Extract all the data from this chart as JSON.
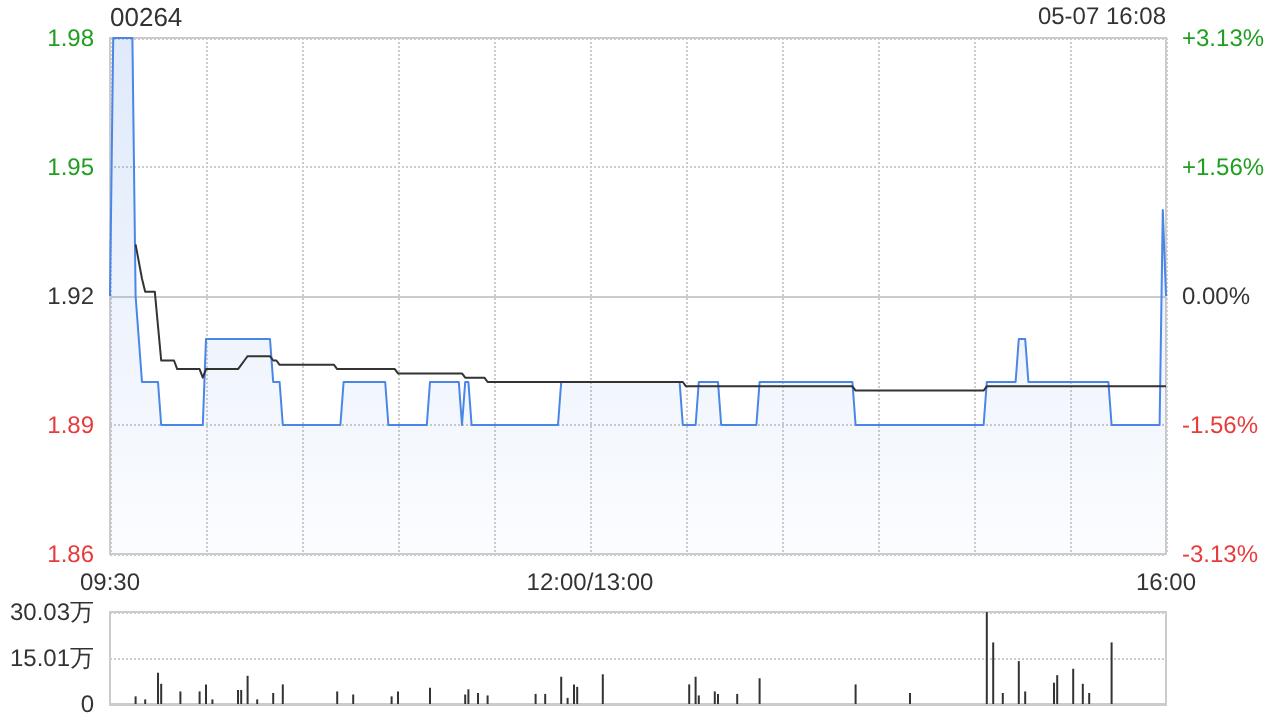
{
  "chart_data": [
    {
      "type": "area",
      "title": "00264",
      "annotations": [
        "05-07 16:08"
      ],
      "categories": [
        "09:30",
        null,
        null,
        null,
        null,
        null,
        null,
        null,
        null,
        null,
        null,
        null,
        null,
        null,
        null,
        null,
        null,
        null,
        null,
        null,
        null,
        null,
        null,
        null,
        null,
        null,
        null,
        null,
        null,
        null,
        null,
        null,
        null,
        null,
        null,
        null,
        null,
        null,
        null,
        null,
        null,
        null,
        null,
        null,
        null,
        null,
        null,
        null,
        null,
        null,
        null,
        null,
        null,
        null,
        null,
        null,
        null,
        null,
        null,
        null,
        null,
        null,
        null,
        null,
        null,
        null,
        null,
        null,
        null,
        null,
        null,
        null,
        null,
        null,
        null,
        null,
        null,
        null,
        null,
        null,
        null,
        null,
        null,
        null,
        null,
        null,
        null,
        null,
        null,
        null,
        null,
        null,
        null,
        null,
        null,
        null,
        null,
        null,
        null,
        null,
        null,
        null,
        null,
        null,
        null,
        null,
        null,
        null,
        null,
        null,
        null,
        null,
        null,
        null,
        null,
        null,
        null,
        null,
        null,
        null,
        null,
        null,
        null,
        null,
        null,
        null,
        null,
        null,
        null,
        null,
        null,
        null,
        null,
        null,
        null,
        null,
        null,
        null,
        null,
        null,
        null,
        null,
        null,
        null,
        null,
        null,
        null,
        null,
        null,
        null,
        "12:00/13:00",
        null,
        null,
        null,
        null,
        null,
        null,
        null,
        null,
        null,
        null,
        null,
        null,
        null,
        null,
        null,
        null,
        null,
        null,
        null,
        null,
        null,
        null,
        null,
        null,
        null,
        null,
        null,
        null,
        null,
        null,
        null,
        null,
        null,
        null,
        null,
        null,
        null,
        null,
        null,
        null,
        null,
        null,
        null,
        null,
        null,
        null,
        null,
        null,
        null,
        null,
        null,
        null,
        null,
        null,
        null,
        null,
        null,
        null,
        null,
        null,
        null,
        null,
        null,
        null,
        null,
        null,
        null,
        null,
        null,
        null,
        null,
        null,
        null,
        null,
        null,
        null,
        null,
        null,
        null,
        null,
        null,
        null,
        null,
        null,
        null,
        null,
        null,
        null,
        null,
        null,
        null,
        null,
        null,
        null,
        null,
        null,
        null,
        null,
        null,
        null,
        null,
        null,
        null,
        null,
        null,
        null,
        null,
        null,
        null,
        null,
        null,
        null,
        null,
        null,
        null,
        null,
        null,
        null,
        null,
        null,
        null,
        null,
        null,
        null,
        null,
        null,
        null,
        null,
        null,
        null,
        null,
        null,
        null,
        null,
        null,
        null,
        null,
        null,
        null,
        null,
        null,
        null,
        null,
        null,
        null,
        null,
        null,
        null,
        null,
        null,
        null,
        null,
        null,
        null,
        null,
        null,
        null,
        null,
        null,
        null,
        null,
        null,
        null,
        null,
        null,
        null,
        null,
        null,
        null,
        null,
        null,
        null,
        null,
        null,
        null,
        null,
        null,
        null,
        null,
        "16:00"
      ],
      "ylim": [
        1.86,
        1.98
      ],
      "yticks": [
        1.86,
        1.89,
        1.92,
        1.95,
        1.98
      ],
      "y2lim": [
        -3.125,
        3.125
      ],
      "y2ticks": [
        {
          "value": -3.125,
          "label": "-3.13%"
        },
        {
          "value": -1.5625,
          "label": "-1.56%"
        },
        {
          "value": 0,
          "label": "0.00%"
        },
        {
          "value": 1.5625,
          "label": "+1.56%"
        },
        {
          "value": 3.125,
          "label": "+3.13%"
        }
      ],
      "grid": true,
      "series": [
        {
          "color": "#4a86e8",
          "values": [
            1.92,
            1.98,
            1.98,
            1.98,
            1.98,
            1.98,
            1.98,
            1.98,
            1.92,
            1.91,
            1.9,
            1.9,
            1.9,
            1.9,
            1.9,
            1.9,
            1.89,
            1.89,
            1.89,
            1.89,
            1.89,
            1.89,
            1.89,
            1.89,
            1.89,
            1.89,
            1.89,
            1.89,
            1.89,
            1.89,
            1.91,
            1.91,
            1.91,
            1.91,
            1.91,
            1.91,
            1.91,
            1.91,
            1.91,
            1.91,
            1.91,
            1.91,
            1.91,
            1.91,
            1.91,
            1.91,
            1.91,
            1.91,
            1.91,
            1.91,
            1.91,
            1.9,
            1.9,
            1.9,
            1.89,
            1.89,
            1.89,
            1.89,
            1.89,
            1.89,
            1.89,
            1.89,
            1.89,
            1.89,
            1.89,
            1.89,
            1.89,
            1.89,
            1.89,
            1.89,
            1.89,
            1.89,
            1.89,
            1.9,
            1.9,
            1.9,
            1.9,
            1.9,
            1.9,
            1.9,
            1.9,
            1.9,
            1.9,
            1.9,
            1.9,
            1.9,
            1.9,
            1.89,
            1.89,
            1.89,
            1.89,
            1.89,
            1.89,
            1.89,
            1.89,
            1.89,
            1.89,
            1.89,
            1.89,
            1.89,
            1.9,
            1.9,
            1.9,
            1.9,
            1.9,
            1.9,
            1.9,
            1.9,
            1.9,
            1.9,
            1.89,
            1.9,
            1.9,
            1.89,
            1.89,
            1.89,
            1.89,
            1.89,
            1.89,
            1.89,
            1.89,
            1.89,
            1.89,
            1.89,
            1.89,
            1.89,
            1.89,
            1.89,
            1.89,
            1.89,
            1.89,
            1.89,
            1.89,
            1.89,
            1.89,
            1.89,
            1.89,
            1.89,
            1.89,
            1.89,
            1.89,
            1.9,
            1.9,
            1.9,
            1.9,
            1.9,
            1.9,
            1.9,
            1.9,
            1.9,
            1.9,
            1.9,
            1.9,
            1.9,
            1.9,
            1.9,
            1.9,
            1.9,
            1.9,
            1.9,
            1.9,
            1.9,
            1.9,
            1.9,
            1.9,
            1.9,
            1.9,
            1.9,
            1.9,
            1.9,
            1.9,
            1.9,
            1.9,
            1.9,
            1.9,
            1.9,
            1.9,
            1.9,
            1.9,
            1.89,
            1.89,
            1.89,
            1.89,
            1.89,
            1.9,
            1.9,
            1.9,
            1.9,
            1.9,
            1.9,
            1.9,
            1.89,
            1.89,
            1.89,
            1.89,
            1.89,
            1.89,
            1.89,
            1.89,
            1.89,
            1.89,
            1.89,
            1.89,
            1.9,
            1.9,
            1.9,
            1.9,
            1.9,
            1.9,
            1.9,
            1.9,
            1.9,
            1.9,
            1.9,
            1.9,
            1.9,
            1.9,
            1.9,
            1.9,
            1.9,
            1.9,
            1.9,
            1.9,
            1.9,
            1.9,
            1.9,
            1.9,
            1.9,
            1.9,
            1.9,
            1.9,
            1.9,
            1.9,
            1.89,
            1.89,
            1.89,
            1.89,
            1.89,
            1.89,
            1.89,
            1.89,
            1.89,
            1.89,
            1.89,
            1.89,
            1.89,
            1.89,
            1.89,
            1.89,
            1.89,
            1.89,
            1.89,
            1.89,
            1.89,
            1.89,
            1.89,
            1.89,
            1.89,
            1.89,
            1.89,
            1.89,
            1.89,
            1.89,
            1.89,
            1.89,
            1.89,
            1.89,
            1.89,
            1.89,
            1.89,
            1.89,
            1.89,
            1.89,
            1.89,
            1.9,
            1.9,
            1.9,
            1.9,
            1.9,
            1.9,
            1.9,
            1.9,
            1.9,
            1.9,
            1.91,
            1.91,
            1.91,
            1.9,
            1.9,
            1.9,
            1.9,
            1.9,
            1.9,
            1.9,
            1.9,
            1.9,
            1.9,
            1.9,
            1.9,
            1.9,
            1.9,
            1.9,
            1.9,
            1.9,
            1.9,
            1.9,
            1.9,
            1.9,
            1.9,
            1.9,
            1.9,
            1.9,
            1.9,
            1.89,
            1.89,
            1.89,
            1.89,
            1.89,
            1.89,
            1.89,
            1.89,
            1.89,
            1.89,
            1.89,
            1.89,
            1.89,
            1.89,
            1.89,
            1.89,
            1.94,
            1.92
          ]
        },
        {
          "type": "line",
          "color": "#333333",
          "values": [
            null,
            null,
            null,
            null,
            null,
            null,
            null,
            null,
            1.932,
            1.928,
            1.924,
            1.921,
            1.921,
            1.921,
            1.921,
            1.913,
            1.905,
            1.905,
            1.905,
            1.905,
            1.905,
            1.903,
            1.903,
            1.903,
            1.903,
            1.903,
            1.903,
            1.903,
            1.903,
            1.901,
            1.903,
            1.903,
            1.903,
            1.903,
            1.903,
            1.903,
            1.903,
            1.903,
            1.903,
            1.903,
            1.903,
            1.904,
            1.905,
            1.906,
            1.906,
            1.906,
            1.906,
            1.906,
            1.906,
            1.906,
            1.906,
            1.905,
            1.905,
            1.904,
            1.904,
            1.904,
            1.904,
            1.904,
            1.904,
            1.904,
            1.904,
            1.904,
            1.904,
            1.904,
            1.904,
            1.904,
            1.904,
            1.904,
            1.904,
            1.904,
            1.904,
            1.903,
            1.903,
            1.903,
            1.903,
            1.903,
            1.903,
            1.903,
            1.903,
            1.903,
            1.903,
            1.903,
            1.903,
            1.903,
            1.903,
            1.903,
            1.903,
            1.903,
            1.903,
            1.903,
            1.902,
            1.902,
            1.902,
            1.902,
            1.902,
            1.902,
            1.902,
            1.902,
            1.902,
            1.902,
            1.902,
            1.902,
            1.902,
            1.902,
            1.902,
            1.902,
            1.902,
            1.902,
            1.902,
            1.902,
            1.902,
            1.901,
            1.901,
            1.901,
            1.901,
            1.901,
            1.901,
            1.901,
            1.9,
            1.9,
            1.9,
            1.9,
            1.9,
            1.9,
            1.9,
            1.9,
            1.9,
            1.9,
            1.9,
            1.9,
            1.9,
            1.9,
            1.9,
            1.9,
            1.9,
            1.9,
            1.9,
            1.9,
            1.9,
            1.9,
            1.9,
            1.9,
            1.9,
            1.9,
            1.9,
            1.9,
            1.9,
            1.9,
            1.9,
            1.9,
            1.9,
            1.9,
            1.9,
            1.9,
            1.9,
            1.9,
            1.9,
            1.9,
            1.9,
            1.9,
            1.9,
            1.9,
            1.9,
            1.9,
            1.9,
            1.9,
            1.9,
            1.9,
            1.9,
            1.9,
            1.9,
            1.9,
            1.9,
            1.9,
            1.9,
            1.9,
            1.9,
            1.9,
            1.9,
            1.9,
            1.899,
            1.899,
            1.899,
            1.899,
            1.899,
            1.899,
            1.899,
            1.899,
            1.899,
            1.899,
            1.899,
            1.899,
            1.899,
            1.899,
            1.899,
            1.899,
            1.899,
            1.899,
            1.899,
            1.899,
            1.899,
            1.899,
            1.899,
            1.899,
            1.899,
            1.899,
            1.899,
            1.899,
            1.899,
            1.899,
            1.899,
            1.899,
            1.899,
            1.899,
            1.899,
            1.899,
            1.899,
            1.899,
            1.899,
            1.899,
            1.899,
            1.899,
            1.899,
            1.899,
            1.899,
            1.899,
            1.899,
            1.899,
            1.899,
            1.899,
            1.899,
            1.899,
            1.899,
            1.898,
            1.898,
            1.898,
            1.898,
            1.898,
            1.898,
            1.898,
            1.898,
            1.898,
            1.898,
            1.898,
            1.898,
            1.898,
            1.898,
            1.898,
            1.898,
            1.898,
            1.898,
            1.898,
            1.898,
            1.898,
            1.898,
            1.898,
            1.898,
            1.898,
            1.898,
            1.898,
            1.898,
            1.898,
            1.898,
            1.898,
            1.898,
            1.898,
            1.898,
            1.898,
            1.898,
            1.898,
            1.898,
            1.898,
            1.898,
            1.898,
            1.899,
            1.899,
            1.899,
            1.899,
            1.899,
            1.899,
            1.899,
            1.899,
            1.899,
            1.899,
            1.899,
            1.899,
            1.899,
            1.899,
            1.899,
            1.899,
            1.899,
            1.899,
            1.899,
            1.899,
            1.899,
            1.899,
            1.899,
            1.899,
            1.899,
            1.899,
            1.899,
            1.899,
            1.899,
            1.899,
            1.899,
            1.899,
            1.899,
            1.899,
            1.899,
            1.899,
            1.899,
            1.899,
            1.899,
            1.899,
            1.899,
            1.899,
            1.899,
            1.899,
            1.899,
            1.899,
            1.899,
            1.899,
            1.899,
            1.899,
            1.899,
            1.899,
            1.899,
            1.899,
            1.899,
            1.899,
            1.899
          ]
        }
      ]
    },
    {
      "type": "bar",
      "categories": [
        null,
        null,
        null,
        null,
        null,
        null,
        null,
        null,
        null,
        null,
        null,
        null,
        null,
        null,
        null,
        null,
        null,
        null,
        null,
        null,
        null,
        null,
        null,
        null,
        null,
        null,
        null,
        null,
        null,
        null,
        null,
        null,
        null,
        null,
        null,
        null,
        null,
        null,
        null,
        null,
        null,
        null,
        null,
        null,
        null,
        null,
        null,
        null,
        null,
        null,
        null,
        null,
        null,
        null,
        null,
        null,
        null,
        null,
        null,
        null,
        null,
        null,
        null,
        null,
        null,
        null,
        null,
        null,
        null,
        null,
        null,
        null,
        null,
        null,
        null,
        null,
        null,
        null,
        null,
        null,
        null,
        null,
        null,
        null,
        null,
        null,
        null,
        null,
        null,
        null,
        null,
        null,
        null,
        null,
        null,
        null,
        null,
        null,
        null,
        null,
        null,
        null,
        null,
        null,
        null,
        null,
        null,
        null,
        null,
        null,
        null,
        null,
        null,
        null,
        null,
        null,
        null,
        null,
        null,
        null,
        null,
        null,
        null,
        null,
        null,
        null,
        null,
        null,
        null,
        null,
        null,
        null,
        null,
        null,
        null,
        null,
        null,
        null,
        null,
        null,
        null,
        null,
        null,
        null,
        null,
        null,
        null,
        null,
        null,
        null,
        null,
        null,
        null,
        null,
        null,
        null,
        null,
        null,
        null,
        null,
        null,
        null,
        null,
        null,
        null,
        null,
        null,
        null,
        null,
        null,
        null,
        null,
        null,
        null,
        null,
        null,
        null,
        null,
        null,
        null,
        null,
        null,
        null,
        null,
        null,
        null,
        null,
        null,
        null,
        null,
        null,
        null,
        null,
        null,
        null,
        null,
        null,
        null,
        null,
        null,
        null,
        null,
        null,
        null,
        null,
        null,
        null,
        null,
        null,
        null,
        null,
        null,
        null,
        null,
        null,
        null,
        null,
        null,
        null,
        null,
        null,
        null,
        null,
        null,
        null,
        null,
        null,
        null,
        null,
        null,
        null,
        null,
        null,
        null,
        null,
        null,
        null,
        null,
        null,
        null,
        null,
        null,
        null,
        null,
        null,
        null,
        null,
        null,
        null,
        null,
        null,
        null,
        null,
        null,
        null,
        null,
        null,
        null,
        null,
        null,
        null,
        null,
        null,
        null,
        null,
        null,
        null,
        null,
        null,
        null,
        null,
        null,
        null,
        null,
        null,
        null,
        null,
        null,
        null,
        null,
        null,
        null,
        null,
        null,
        null,
        null,
        null,
        null,
        null,
        null,
        null,
        null,
        null,
        null,
        null,
        null,
        null,
        null,
        null,
        null,
        null,
        null,
        null,
        null,
        null,
        null,
        null,
        null,
        null,
        null,
        null,
        null,
        null,
        null,
        null,
        null,
        null,
        null,
        null,
        null,
        null,
        null,
        null,
        null,
        null,
        null,
        null,
        null,
        null,
        null,
        null
      ],
      "ylim": [
        0,
        30.03
      ],
      "yticks": [
        0,
        {
          "value": 15.01,
          "label": "15.01万"
        },
        {
          "value": 30.03,
          "label": "30.03万"
        }
      ],
      "grid": "y",
      "series": [
        {
          "color": "#333333",
          "values": [
            null,
            null,
            null,
            null,
            null,
            null,
            null,
            null,
            2.5,
            null,
            null,
            1.5,
            null,
            null,
            null,
            10.2,
            6.6,
            null,
            null,
            null,
            null,
            null,
            4.1,
            null,
            null,
            null,
            null,
            null,
            4.1,
            null,
            6.4,
            null,
            1.5,
            null,
            null,
            null,
            null,
            null,
            null,
            null,
            4.6,
            4.6,
            null,
            9.2,
            null,
            null,
            1.5,
            null,
            null,
            null,
            null,
            3.6,
            null,
            null,
            6.4,
            null,
            null,
            null,
            null,
            null,
            null,
            null,
            null,
            null,
            null,
            null,
            null,
            null,
            null,
            null,
            null,
            4.1,
            null,
            null,
            null,
            null,
            3.1,
            null,
            null,
            null,
            null,
            null,
            null,
            null,
            null,
            null,
            null,
            null,
            2.5,
            null,
            4.1,
            null,
            null,
            null,
            null,
            null,
            null,
            null,
            null,
            null,
            5.3,
            null,
            null,
            null,
            null,
            null,
            null,
            null,
            null,
            null,
            null,
            3.1,
            4.8,
            null,
            null,
            3.6,
            null,
            null,
            2.8,
            null,
            null,
            null,
            null,
            null,
            null,
            null,
            null,
            null,
            null,
            null,
            null,
            null,
            null,
            3.3,
            null,
            null,
            3.3,
            null,
            null,
            null,
            null,
            8.9,
            null,
            2.0,
            null,
            6.4,
            5.6,
            null,
            null,
            null,
            null,
            null,
            null,
            null,
            9.7,
            null,
            null,
            null,
            null,
            null,
            null,
            null,
            null,
            null,
            null,
            null,
            null,
            null,
            null,
            null,
            null,
            null,
            null,
            null,
            null,
            null,
            null,
            null,
            null,
            null,
            null,
            6.4,
            null,
            8.9,
            2.8,
            null,
            null,
            null,
            null,
            4.1,
            3.3,
            null,
            null,
            null,
            null,
            null,
            3.3,
            null,
            null,
            null,
            null,
            null,
            null,
            8.4,
            null,
            null,
            null,
            null,
            null,
            null,
            null,
            null,
            null,
            null,
            null,
            null,
            null,
            null,
            null,
            null,
            null,
            null,
            null,
            null,
            null,
            null,
            null,
            null,
            null,
            null,
            null,
            null,
            null,
            6.4,
            null,
            null,
            null,
            null,
            null,
            null,
            null,
            null,
            null,
            null,
            null,
            null,
            null,
            null,
            null,
            null,
            3.6,
            null,
            null,
            null,
            null,
            null,
            null,
            null,
            null,
            null,
            null,
            null,
            null,
            null,
            null,
            null,
            null,
            null,
            null,
            null,
            null,
            null,
            null,
            null,
            30.0,
            null,
            20.1,
            null,
            null,
            3.6,
            null,
            null,
            null,
            null,
            14.0,
            null,
            4.1,
            null,
            null,
            null,
            null,
            null,
            null,
            null,
            null,
            6.9,
            9.4,
            null,
            null,
            null,
            null,
            11.5,
            null,
            null,
            6.6,
            null,
            3.6,
            null,
            null,
            null,
            null,
            null,
            null,
            20.1,
            null,
            null,
            null,
            null,
            null,
            null,
            null,
            null,
            null,
            null,
            null,
            null,
            null,
            null,
            null,
            null,
            null
          ]
        }
      ]
    }
  ]
}
